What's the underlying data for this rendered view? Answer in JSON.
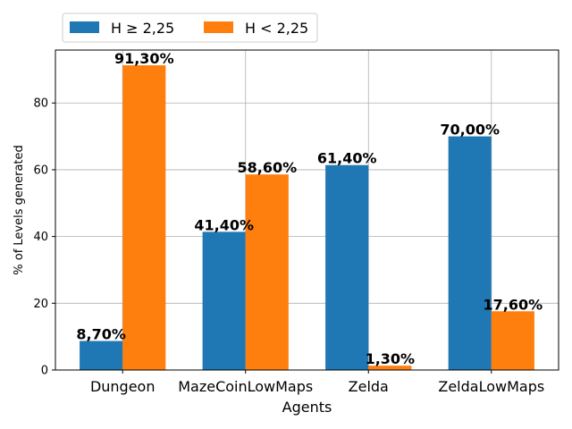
{
  "chart_data": {
    "type": "bar",
    "categories": [
      "Dungeon",
      "MazeCoinLowMaps",
      "Zelda",
      "ZeldaLowMaps"
    ],
    "series": [
      {
        "name": "H ≥ 2,25",
        "color": "#1f77b4",
        "values": [
          8.7,
          41.4,
          61.4,
          70.0
        ],
        "labels": [
          "8,70%",
          "41,40%",
          "61,40%",
          "70,00%"
        ]
      },
      {
        "name": "H < 2,25",
        "color": "#ff7f0e",
        "values": [
          91.3,
          58.6,
          1.3,
          17.6
        ],
        "labels": [
          "91,30%",
          "58,60%",
          "1,30%",
          "17,60%"
        ]
      }
    ],
    "xlabel": "Agents",
    "ylabel": "% of Levels generated",
    "ylim": [
      0,
      95.865
    ],
    "yticks": [
      0,
      20,
      40,
      60,
      80
    ],
    "grid": true,
    "legend_position": "top-left"
  }
}
